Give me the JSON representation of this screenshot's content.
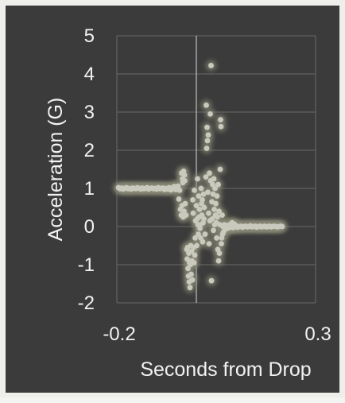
{
  "chart_data": {
    "type": "scatter",
    "title": "",
    "xlabel": "Seconds from Drop",
    "ylabel": "Acceleration (G)",
    "xlim": [
      -0.2,
      0.3
    ],
    "ylim": [
      -2,
      5
    ],
    "x_ticks": [
      -0.2,
      0.3
    ],
    "x_tick_labels": [
      "-0.2",
      "0.3"
    ],
    "y_ticks": [
      -2,
      -1,
      0,
      1,
      2,
      3,
      4,
      5
    ],
    "y_tick_labels": [
      "-2",
      "-1",
      "0",
      "1",
      "2",
      "3",
      "4",
      "5"
    ],
    "grid": true,
    "legend": "none",
    "colors": {
      "background": "#3b3b3b",
      "frame": "#eeeeea",
      "marker": "#c9c9bd",
      "marker_glow": "#8a8a78",
      "gridline": "#6a6a6a",
      "zero_line": "#b8b8b8",
      "text": "#f2f2f2"
    },
    "series": [
      {
        "points": [
          [
            -0.196,
            1.02
          ],
          [
            -0.192,
            0.99
          ],
          [
            -0.188,
            1.01
          ],
          [
            -0.184,
            0.98
          ],
          [
            -0.18,
            1.0
          ],
          [
            -0.176,
            1.02
          ],
          [
            -0.172,
            0.99
          ],
          [
            -0.168,
            1.0
          ],
          [
            -0.164,
            0.98
          ],
          [
            -0.16,
            1.01
          ],
          [
            -0.156,
            1.0
          ],
          [
            -0.152,
            0.99
          ],
          [
            -0.148,
            1.02
          ],
          [
            -0.144,
            1.0
          ],
          [
            -0.14,
            0.98
          ],
          [
            -0.136,
            1.01
          ],
          [
            -0.132,
            0.99
          ],
          [
            -0.128,
            1.0
          ],
          [
            -0.124,
            1.02
          ],
          [
            -0.12,
            0.98
          ],
          [
            -0.116,
            1.0
          ],
          [
            -0.112,
            1.01
          ],
          [
            -0.108,
            0.99
          ],
          [
            -0.104,
            1.0
          ],
          [
            -0.1,
            0.98
          ],
          [
            -0.096,
            1.02
          ],
          [
            -0.092,
            0.99
          ],
          [
            -0.088,
            1.0
          ],
          [
            -0.084,
            1.01
          ],
          [
            -0.08,
            0.97
          ],
          [
            -0.076,
            1.0
          ],
          [
            -0.072,
            0.98
          ],
          [
            -0.068,
            1.02
          ],
          [
            -0.064,
            0.96
          ],
          [
            -0.06,
            1.0
          ],
          [
            -0.056,
            1.05
          ],
          [
            -0.052,
            0.97
          ],
          [
            -0.048,
            1.0
          ],
          [
            -0.046,
            1.06
          ],
          [
            -0.044,
            0.72
          ],
          [
            -0.042,
            0.95
          ],
          [
            -0.04,
            0.45
          ],
          [
            -0.038,
            0.3
          ],
          [
            -0.037,
            1.4
          ],
          [
            -0.036,
            0.55
          ],
          [
            -0.035,
            1.25
          ],
          [
            -0.034,
            1.15
          ],
          [
            -0.033,
            0.25
          ],
          [
            -0.032,
            1.45
          ],
          [
            -0.031,
            0.4
          ],
          [
            -0.03,
            1.35
          ],
          [
            -0.029,
            1.2
          ],
          [
            -0.028,
            0.6
          ],
          [
            -0.026,
            0.3
          ],
          [
            -0.024,
            -0.6
          ],
          [
            -0.023,
            -0.85
          ],
          [
            -0.022,
            -0.55
          ],
          [
            -0.021,
            -1.1
          ],
          [
            -0.02,
            -1.3
          ],
          [
            -0.019,
            -0.7
          ],
          [
            -0.018,
            -1.45
          ],
          [
            -0.017,
            -0.95
          ],
          [
            -0.016,
            -1.6
          ],
          [
            -0.015,
            -1.0
          ],
          [
            -0.014,
            -0.5
          ],
          [
            -0.013,
            -1.25
          ],
          [
            -0.012,
            -0.65
          ],
          [
            -0.011,
            -0.9
          ],
          [
            -0.01,
            -1.4
          ],
          [
            -0.009,
            0.7
          ],
          [
            -0.008,
            0.35
          ],
          [
            -0.007,
            -0.55
          ],
          [
            -0.006,
            -0.95
          ],
          [
            -0.005,
            0.95
          ],
          [
            -0.004,
            -0.75
          ],
          [
            -0.003,
            -0.3
          ],
          [
            -0.002,
            0.15
          ],
          [
            0.0,
            0.55
          ],
          [
            0.001,
            -0.5
          ],
          [
            0.002,
            0.2
          ],
          [
            0.003,
            1.25
          ],
          [
            0.004,
            0.05
          ],
          [
            0.005,
            -0.2
          ],
          [
            0.006,
            0.8
          ],
          [
            0.007,
            0.25
          ],
          [
            0.008,
            0.45
          ],
          [
            0.009,
            -0.05
          ],
          [
            0.01,
            0.05
          ],
          [
            0.011,
            -0.3
          ],
          [
            0.012,
            1.0
          ],
          [
            0.013,
            0.6
          ],
          [
            0.014,
            0.3
          ],
          [
            0.015,
            0.7
          ],
          [
            0.016,
            -0.4
          ],
          [
            0.017,
            0.1
          ],
          [
            0.018,
            0.85
          ],
          [
            0.019,
            0.2
          ],
          [
            0.02,
            0.5
          ],
          [
            0.022,
            -0.2
          ],
          [
            0.024,
            1.3
          ],
          [
            0.025,
            3.18
          ],
          [
            0.026,
            2.05
          ],
          [
            0.027,
            2.6
          ],
          [
            0.028,
            2.25
          ],
          [
            0.029,
            0.9
          ],
          [
            0.03,
            2.4
          ],
          [
            0.031,
            0.35
          ],
          [
            0.032,
            -0.45
          ],
          [
            0.033,
            1.4
          ],
          [
            0.034,
            0.15
          ],
          [
            0.035,
            2.95
          ],
          [
            0.036,
            1.2
          ],
          [
            0.037,
            4.22
          ],
          [
            0.038,
            -1.42
          ],
          [
            0.039,
            0.65
          ],
          [
            0.04,
            0.2
          ],
          [
            0.041,
            1.1
          ],
          [
            0.042,
            0.85
          ],
          [
            0.043,
            -0.1
          ],
          [
            0.044,
            1.25
          ],
          [
            0.045,
            0.45
          ],
          [
            0.046,
            0.05
          ],
          [
            0.047,
            1.0
          ],
          [
            0.048,
            0.3
          ],
          [
            0.049,
            0.6
          ],
          [
            0.05,
            0.1
          ],
          [
            0.051,
            -0.3
          ],
          [
            0.052,
            0.8
          ],
          [
            0.053,
            0.25
          ],
          [
            0.054,
            -0.6
          ],
          [
            0.055,
            1.1
          ],
          [
            0.056,
            -0.9
          ],
          [
            0.057,
            0.4
          ],
          [
            0.058,
            -0.7
          ],
          [
            0.059,
            0.05
          ],
          [
            0.06,
            1.5
          ],
          [
            0.061,
            2.8
          ],
          [
            0.062,
            2.62
          ],
          [
            0.063,
            -0.45
          ],
          [
            0.064,
            -0.3
          ],
          [
            0.065,
            0.3
          ],
          [
            0.066,
            -0.2
          ],
          [
            0.067,
            0.0
          ],
          [
            0.068,
            -0.15
          ],
          [
            0.07,
            0.05
          ],
          [
            0.072,
            -0.08
          ],
          [
            0.074,
            0.02
          ],
          [
            0.076,
            -0.05
          ],
          [
            0.078,
            0.03
          ],
          [
            0.08,
            -0.04
          ],
          [
            0.082,
            0.01
          ],
          [
            0.084,
            0.05
          ],
          [
            0.086,
            -0.02
          ],
          [
            0.088,
            0.0
          ],
          [
            0.09,
            0.1
          ],
          [
            0.092,
            -0.03
          ],
          [
            0.094,
            0.02
          ],
          [
            0.096,
            0.06
          ],
          [
            0.098,
            -0.01
          ],
          [
            0.1,
            0.02
          ],
          [
            0.104,
            -0.02
          ],
          [
            0.108,
            0.0
          ],
          [
            0.112,
            0.01
          ],
          [
            0.116,
            -0.02
          ],
          [
            0.12,
            0.0
          ],
          [
            0.124,
            0.01
          ],
          [
            0.128,
            -0.01
          ],
          [
            0.132,
            0.0
          ],
          [
            0.136,
            0.02
          ],
          [
            0.14,
            -0.01
          ],
          [
            0.144,
            0.0
          ],
          [
            0.148,
            0.01
          ],
          [
            0.152,
            -0.02
          ],
          [
            0.156,
            0.0
          ],
          [
            0.16,
            0.01
          ],
          [
            0.164,
            -0.01
          ],
          [
            0.168,
            0.0
          ],
          [
            0.172,
            0.01
          ],
          [
            0.176,
            -0.01
          ],
          [
            0.18,
            0.0
          ],
          [
            0.184,
            0.01
          ],
          [
            0.188,
            -0.01
          ],
          [
            0.192,
            0.0
          ],
          [
            0.196,
            0.01
          ],
          [
            0.2,
            0.0
          ],
          [
            0.204,
            -0.01
          ],
          [
            0.208,
            0.0
          ],
          [
            0.212,
            0.01
          ],
          [
            0.216,
            0.0
          ]
        ]
      }
    ]
  }
}
